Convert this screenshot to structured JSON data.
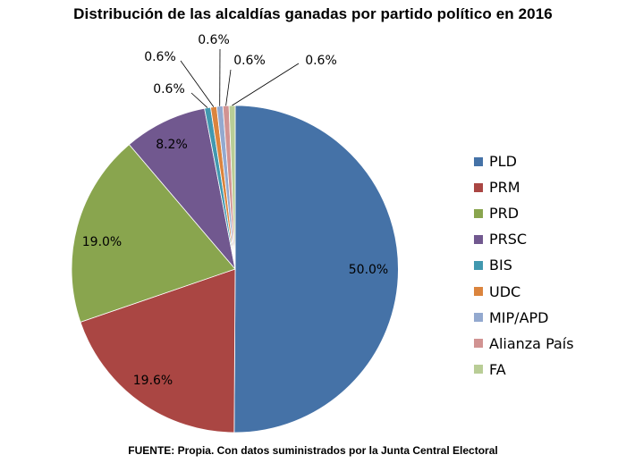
{
  "chart_data": {
    "type": "pie",
    "title": "Distribución  de las alcaldías ganadas  por partido político  en 2016",
    "source": "FUENTE: Propia. Con datos suministrados por la Junta Central Electoral",
    "legend_position": "right",
    "categories": [
      "PLD",
      "PRM",
      "PRD",
      "PRSC",
      "BIS",
      "UDC",
      "MIP/APD",
      "Alianza País",
      "FA"
    ],
    "values": [
      50.0,
      19.6,
      19.0,
      8.2,
      0.6,
      0.6,
      0.6,
      0.6,
      0.6
    ],
    "labels": [
      "50.0%",
      "19.6%",
      "19.0%",
      "8.2%",
      "0.6%",
      "0.6%",
      "0.6%",
      "0.6%",
      "0.6%"
    ],
    "colors": [
      "#4572A7",
      "#AA4643",
      "#89A54E",
      "#71588F",
      "#4198AF",
      "#DB843D",
      "#93A9CF",
      "#D19392",
      "#B9CD96"
    ]
  }
}
